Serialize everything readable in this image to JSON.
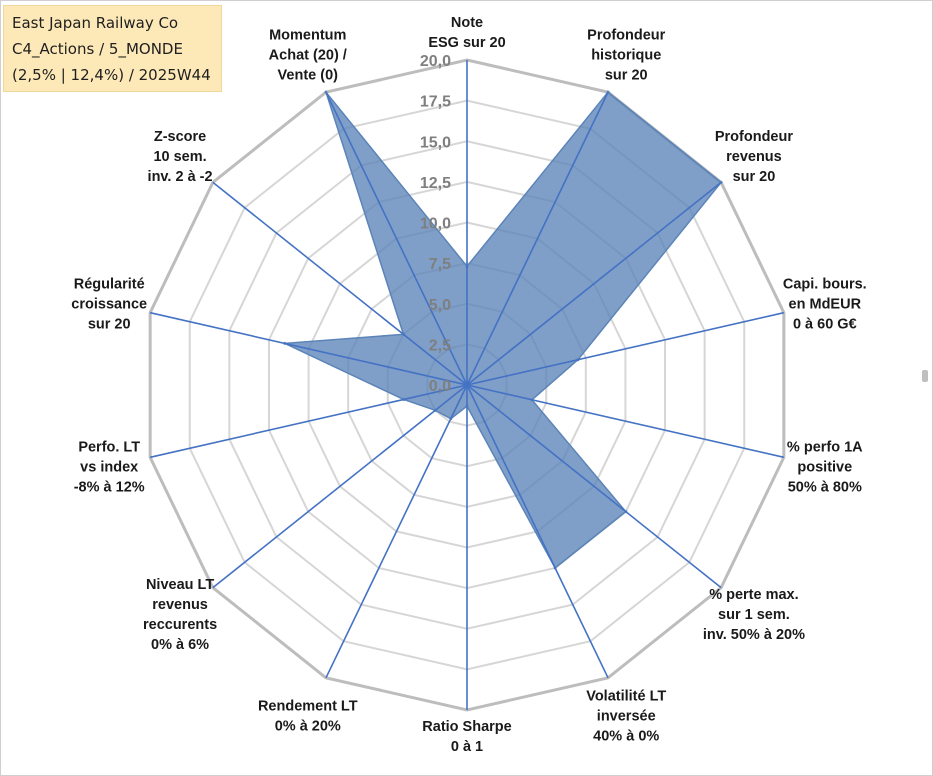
{
  "title_box": {
    "line1": "East Japan Railway Co",
    "line2": "C4_Actions / 5_MONDE",
    "line3": "(2,5% | 12,4%) / 2025W44"
  },
  "chart_data": {
    "type": "radar",
    "title": "East Japan Railway Co",
    "rmin": 0,
    "rmax": 20,
    "tick_step": 2.5,
    "tick_labels": [
      "0,0",
      "2,5",
      "5,0",
      "7,5",
      "10,0",
      "12,5",
      "15,0",
      "17,5",
      "20,0"
    ],
    "grid": true,
    "series_color": "#5b84b8",
    "categories": [
      [
        "Note",
        "ESG sur 20"
      ],
      [
        "Profondeur",
        "historique",
        "sur 20"
      ],
      [
        "Profondeur",
        "revenus",
        "sur 20"
      ],
      [
        "Capi. bours.",
        "en MdEUR",
        "0 à 60 G€"
      ],
      [
        "% perfo 1A",
        "positive",
        "50% à 80%"
      ],
      [
        "% perte max.",
        "sur 1 sem.",
        "inv. 50% à 20%"
      ],
      [
        "Volatilité LT",
        "inversée",
        "40% à 0%"
      ],
      [
        "Ratio Sharpe",
        "0 à 1"
      ],
      [
        "Rendement LT",
        "0% à 20%"
      ],
      [
        "Niveau LT",
        "revenus",
        "reccurents",
        "0% à 6%"
      ],
      [
        "Perfo. LT",
        "vs index",
        "-8% à 12%"
      ],
      [
        "Régularité",
        "croissance",
        "sur 20"
      ],
      [
        "Z-score",
        "10 sem.",
        "inv. 2 à -2"
      ],
      [
        "Momentum",
        "Achat (20) /",
        "Vente (0)"
      ]
    ],
    "series": [
      {
        "values": [
          7.3,
          20.0,
          20.0,
          7.0,
          4.1,
          12.5,
          12.5,
          1.3,
          2.3,
          2.5,
          4.0,
          11.5,
          5.0,
          20.0
        ]
      }
    ]
  }
}
